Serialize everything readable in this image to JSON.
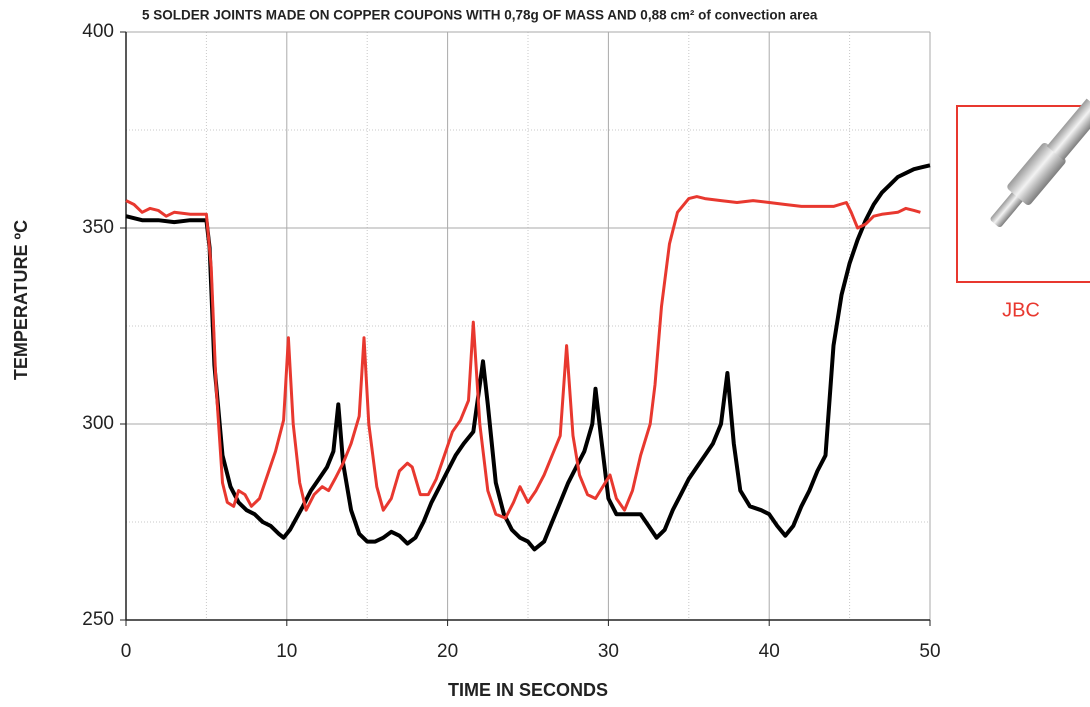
{
  "chart_data": {
    "type": "line",
    "title": "5 SOLDER JOINTS MADE ON COPPER COUPONS WITH 0,78g OF MASS AND 0,88 cm² of convection area",
    "x_label": "TIME IN SECONDS",
    "y_label": "TEMPERATURE ºC",
    "inset_label": "JBC",
    "xlim": [
      0,
      50
    ],
    "xticks": [
      0,
      10,
      20,
      30,
      40,
      50
    ],
    "ylim": [
      250,
      400
    ],
    "yticks": [
      250,
      300,
      350,
      400
    ],
    "grid": true,
    "minor_grid": true,
    "series": [
      {
        "color": "#000000",
        "x": [
          0,
          1,
          2,
          3,
          4,
          5,
          5.2,
          5.5,
          6,
          6.5,
          7,
          7.5,
          8,
          8.5,
          9,
          9.5,
          9.8,
          10.2,
          11,
          11.5,
          12,
          12.5,
          12.9,
          13.2,
          13.5,
          14,
          14.5,
          15,
          15.5,
          16,
          16.5,
          17,
          17.5,
          18,
          18.5,
          19,
          19.5,
          20,
          20.5,
          21,
          21.6,
          22,
          22.2,
          22.5,
          23,
          23.5,
          24,
          24.5,
          25,
          25.4,
          26,
          26.5,
          27,
          27.5,
          28,
          28.5,
          29,
          29.2,
          29.5,
          30,
          30.5,
          31,
          32,
          32.5,
          33,
          33.5,
          34,
          34.5,
          35,
          35.5,
          36,
          36.5,
          37,
          37.4,
          37.8,
          38.2,
          38.8,
          39.5,
          40,
          40.5,
          41,
          41.5,
          42,
          42.5,
          43,
          43.5,
          44,
          44.5,
          45,
          45.5,
          46,
          46.5,
          47,
          47.5,
          48,
          48.5,
          49,
          49.5,
          50
        ],
        "values": [
          353,
          352,
          352,
          351.5,
          352,
          352,
          345,
          315,
          292,
          284,
          280,
          278,
          277,
          275,
          274,
          272,
          271,
          273,
          279,
          283,
          286,
          289,
          293,
          305,
          290,
          278,
          272,
          270,
          270,
          271,
          272.5,
          271.5,
          269.5,
          271,
          275,
          280,
          284,
          288,
          292,
          295,
          298,
          310,
          316,
          305,
          285,
          277,
          273,
          271,
          270,
          268,
          270,
          275,
          280,
          285,
          289,
          293,
          300,
          309,
          298,
          281,
          277,
          277,
          277,
          274,
          271,
          273,
          278,
          282,
          286,
          289,
          292,
          295,
          300,
          313,
          295,
          283,
          279,
          278,
          277,
          274,
          271.5,
          274,
          279,
          283,
          288,
          292,
          320,
          333,
          341,
          347,
          352,
          356,
          359,
          361,
          363,
          364,
          365,
          365.5,
          366
        ]
      },
      {
        "color": "#e8382f",
        "x": [
          0,
          0.5,
          1,
          1.5,
          2,
          2.5,
          3,
          4,
          5,
          5.3,
          5.6,
          6,
          6.3,
          6.7,
          7,
          7.4,
          7.8,
          8.3,
          8.8,
          9.3,
          9.8,
          10.1,
          10.4,
          10.8,
          11.2,
          11.7,
          12.2,
          12.6,
          13,
          13.5,
          14,
          14.5,
          14.8,
          15.1,
          15.6,
          16,
          16.5,
          17,
          17.5,
          17.8,
          18.3,
          18.8,
          19.3,
          19.8,
          20.3,
          20.8,
          21.3,
          21.6,
          22,
          22.5,
          23,
          23.6,
          24.1,
          24.5,
          25,
          25.5,
          26,
          26.5,
          27,
          27.4,
          27.8,
          28.2,
          28.7,
          29.2,
          29.8,
          30.1,
          30.5,
          31,
          31.5,
          32,
          32.6,
          32.9,
          33.3,
          33.8,
          34.3,
          35,
          35.5,
          36,
          37,
          38,
          39,
          40,
          41,
          42,
          43,
          44,
          44.8,
          45.1,
          45.5,
          46,
          46.5,
          47,
          48,
          48.5,
          49,
          49.4
        ],
        "values": [
          357,
          356,
          354,
          355,
          354.5,
          353,
          354,
          353.5,
          353.5,
          340,
          310,
          285,
          280,
          279,
          283,
          282,
          279,
          281,
          287,
          293,
          301,
          322,
          300,
          285,
          278,
          282,
          284,
          283,
          286,
          290,
          295,
          302,
          322,
          300,
          284,
          278,
          281,
          288,
          290,
          289,
          282,
          282,
          286,
          292,
          298,
          301,
          306,
          326,
          300,
          283,
          277,
          276,
          280,
          284,
          280,
          283,
          287,
          292,
          297,
          320,
          297,
          287,
          282,
          281,
          285,
          287,
          281,
          278,
          283,
          292,
          300,
          310,
          330,
          346,
          354,
          357.5,
          358,
          357.5,
          357,
          356.5,
          357,
          356.5,
          356,
          355.5,
          355.5,
          355.5,
          356.5,
          354,
          350,
          351,
          353,
          353.5,
          354,
          355,
          354.5,
          354
        ]
      }
    ]
  }
}
